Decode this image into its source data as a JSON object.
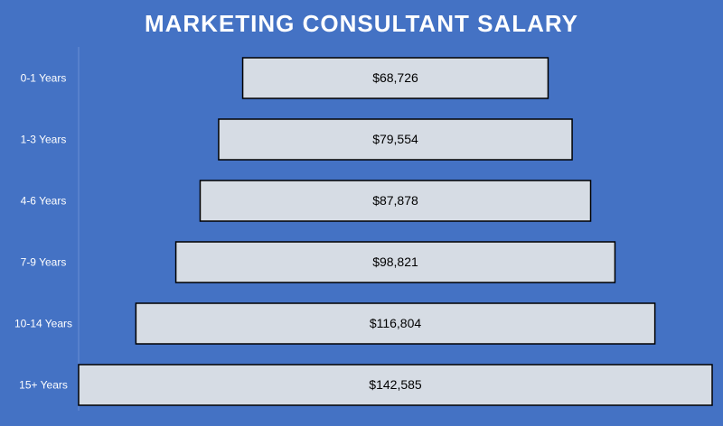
{
  "chart_data": {
    "type": "funnel",
    "title": "MARKETING CONSULTANT SALARY",
    "categories": [
      "0-1 Years",
      "1-3 Years",
      "4-6 Years",
      "7-9 Years",
      "10-14 Years",
      "15+ Years"
    ],
    "values": [
      68726,
      79554,
      87878,
      98821,
      116804,
      142585
    ],
    "value_labels": [
      "$68,726",
      "$79,554",
      "$87,878",
      "$98,821",
      "$116,804",
      "$142,585"
    ],
    "color": "#d6dce4"
  }
}
